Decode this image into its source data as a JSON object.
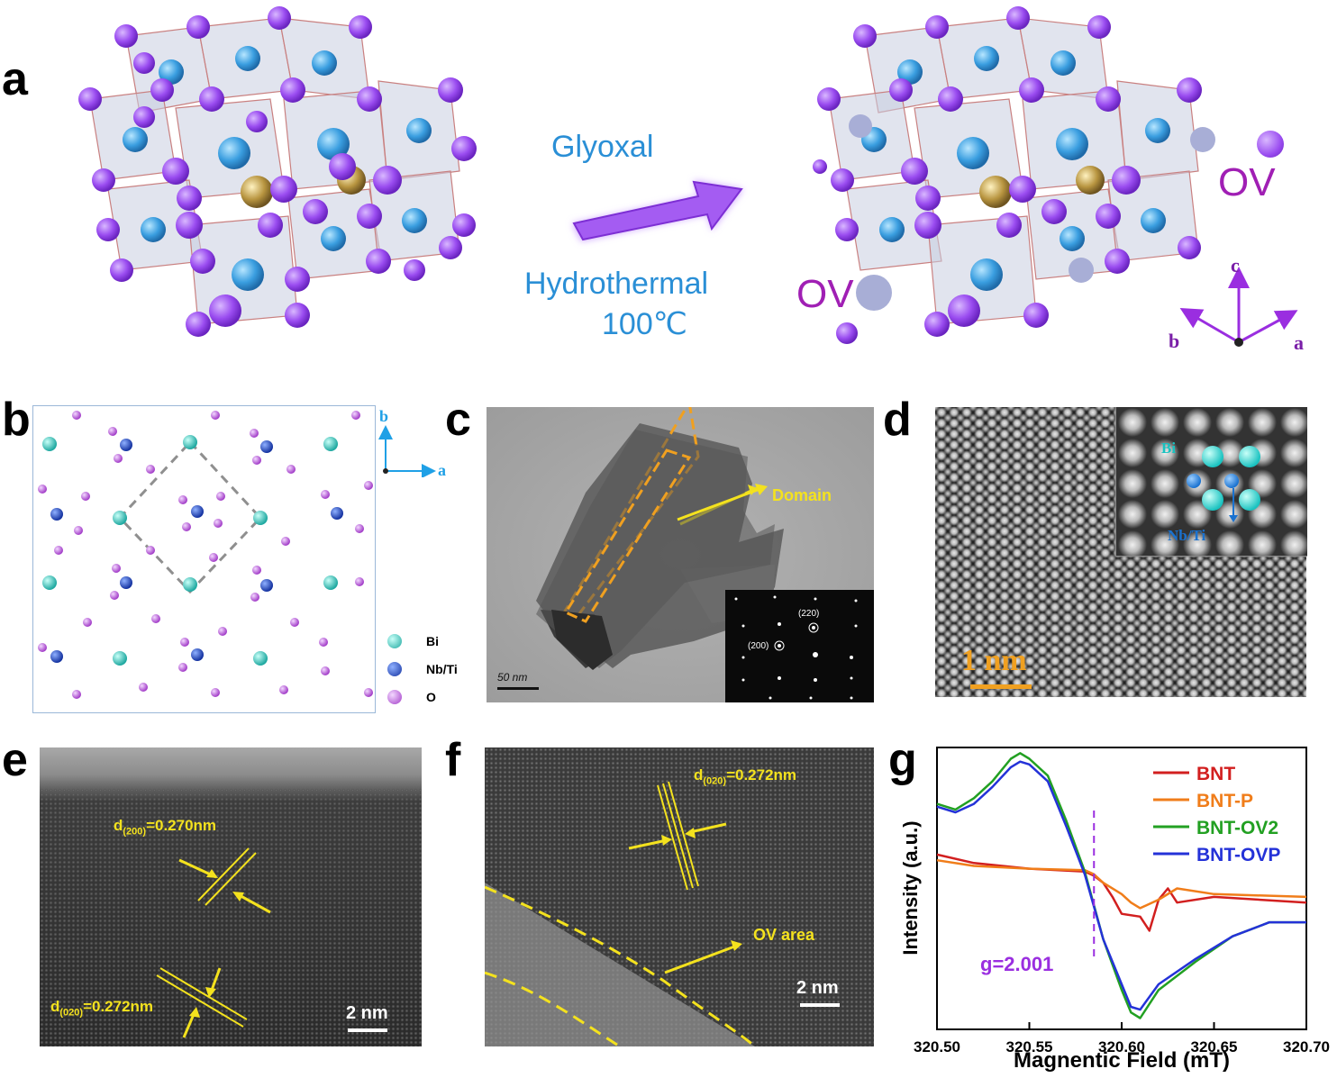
{
  "panel_labels": {
    "a": "a",
    "b": "b",
    "c": "c",
    "d": "d",
    "e": "e",
    "f": "f",
    "g": "g"
  },
  "panel_a": {
    "reagent": "Glyoxal",
    "condition": "Hydrothermal",
    "temperature": "100℃",
    "ov_right": "OV",
    "ov_left": "OV",
    "axes": {
      "c": "c",
      "b": "b",
      "a": "a"
    }
  },
  "panel_b": {
    "axis_b": "b",
    "axis_a": "a",
    "legend": [
      "Bi",
      "Nb/Ti",
      "O"
    ]
  },
  "panel_c": {
    "domain_label": "Domain",
    "scale": "50 nm",
    "saed": [
      "(220)",
      "(200)"
    ]
  },
  "panel_d": {
    "inset_bi": "Bi",
    "inset_nbti": "Nb/Ti",
    "scale": "1 nm"
  },
  "panel_e": {
    "d200": {
      "prefix": "d",
      "sub": "(200)",
      "value": "=0.270nm"
    },
    "d020": {
      "prefix": "d",
      "sub": "(020)",
      "value": "=0.272nm"
    },
    "scale": "2 nm"
  },
  "panel_f": {
    "d020": {
      "prefix": "d",
      "sub": "(020)",
      "value": "=0.272nm"
    },
    "ov_area": "OV area",
    "scale": "2 nm"
  },
  "chart_data": {
    "type": "line",
    "title": "",
    "xlabel": "Magnentic Field (mT)",
    "ylabel": "Intensity (a.u.)",
    "xlim": [
      320.5,
      320.7
    ],
    "xticks": [
      "320.50",
      "320.55",
      "320.60",
      "320.65",
      "320.70"
    ],
    "legend_position": "top-right",
    "annotation": "g=2.001",
    "annotation_x": 320.585,
    "series": [
      {
        "name": "BNT",
        "color": "#d21f1f",
        "x": [
          320.5,
          320.52,
          320.55,
          320.58,
          320.585,
          320.59,
          320.595,
          320.6,
          320.61,
          320.615,
          320.62,
          320.625,
          320.63,
          320.65,
          320.7
        ],
        "y": [
          0.62,
          0.59,
          0.57,
          0.56,
          0.545,
          0.52,
          0.47,
          0.41,
          0.4,
          0.35,
          0.46,
          0.5,
          0.45,
          0.47,
          0.45
        ]
      },
      {
        "name": "BNT-P",
        "color": "#f07d1a",
        "x": [
          320.5,
          320.52,
          320.55,
          320.58,
          320.585,
          320.59,
          320.6,
          320.605,
          320.61,
          320.62,
          320.63,
          320.65,
          320.7
        ],
        "y": [
          0.6,
          0.58,
          0.57,
          0.565,
          0.55,
          0.52,
          0.48,
          0.45,
          0.43,
          0.46,
          0.5,
          0.48,
          0.47
        ]
      },
      {
        "name": "BNT-OV2",
        "color": "#22a022",
        "x": [
          320.5,
          320.51,
          320.52,
          320.53,
          320.54,
          320.545,
          320.55,
          320.56,
          320.57,
          320.58,
          320.59,
          320.6,
          320.605,
          320.61,
          320.62,
          320.64,
          320.66,
          320.68,
          320.7
        ],
        "y": [
          0.8,
          0.78,
          0.82,
          0.88,
          0.96,
          0.98,
          0.96,
          0.9,
          0.74,
          0.56,
          0.32,
          0.14,
          0.06,
          0.04,
          0.14,
          0.24,
          0.33,
          0.38,
          0.38
        ]
      },
      {
        "name": "BNT-OVP",
        "color": "#2432d8",
        "x": [
          320.5,
          320.51,
          320.52,
          320.53,
          320.54,
          320.545,
          320.55,
          320.56,
          320.57,
          320.58,
          320.59,
          320.6,
          320.605,
          320.61,
          320.62,
          320.64,
          320.66,
          320.68,
          320.7
        ],
        "y": [
          0.79,
          0.77,
          0.8,
          0.86,
          0.93,
          0.95,
          0.94,
          0.88,
          0.72,
          0.55,
          0.32,
          0.16,
          0.08,
          0.07,
          0.16,
          0.25,
          0.33,
          0.38,
          0.38
        ]
      }
    ]
  }
}
